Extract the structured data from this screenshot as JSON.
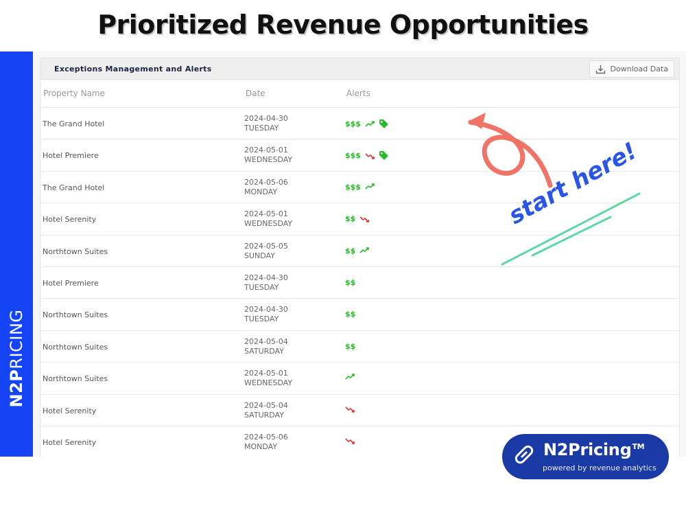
{
  "title": "Prioritized Revenue Opportunities",
  "sidebar": {
    "brand_bold": "N2P",
    "brand_rest": "RICING"
  },
  "panel": {
    "header_title": "Exceptions Management and Alerts",
    "download_label": "Download Data",
    "columns": [
      "Property Name",
      "Date",
      "Alerts"
    ]
  },
  "rows": [
    {
      "property": "The Grand Hotel",
      "date": "2024-04-30",
      "day": "TUESDAY",
      "money": "$$$",
      "trend": "up",
      "tag": true
    },
    {
      "property": "Hotel Premiere",
      "date": "2024-05-01",
      "day": "WEDNESDAY",
      "money": "$$$",
      "trend": "down",
      "tag": true
    },
    {
      "property": "The Grand Hotel",
      "date": "2024-05-06",
      "day": "MONDAY",
      "money": "$$$",
      "trend": "up",
      "tag": false
    },
    {
      "property": "Hotel Serenity",
      "date": "2024-05-01",
      "day": "WEDNESDAY",
      "money": "$$",
      "trend": "down",
      "tag": false
    },
    {
      "property": "Northtown Suites",
      "date": "2024-05-05",
      "day": "SUNDAY",
      "money": "$$",
      "trend": "up",
      "tag": false
    },
    {
      "property": "Hotel Premiere",
      "date": "2024-04-30",
      "day": "TUESDAY",
      "money": "$$",
      "trend": "",
      "tag": false
    },
    {
      "property": "Northtown Suites",
      "date": "2024-04-30",
      "day": "TUESDAY",
      "money": "$$",
      "trend": "",
      "tag": false
    },
    {
      "property": "Northtown Suites",
      "date": "2024-05-04",
      "day": "SATURDAY",
      "money": "$$",
      "trend": "",
      "tag": false
    },
    {
      "property": "Northtown Suites",
      "date": "2024-05-01",
      "day": "WEDNESDAY",
      "money": "",
      "trend": "up",
      "tag": false
    },
    {
      "property": "Hotel Serenity",
      "date": "2024-05-04",
      "day": "SATURDAY",
      "money": "",
      "trend": "down",
      "tag": false
    },
    {
      "property": "Hotel Serenity",
      "date": "2024-05-06",
      "day": "MONDAY",
      "money": "",
      "trend": "down",
      "tag": false
    }
  ],
  "annotation": {
    "text": "start here!"
  },
  "badge": {
    "name": "N2Pricing",
    "tm": "TM",
    "subtitle": "powered by revenue analytics"
  },
  "colors": {
    "brand_blue": "#1544f5",
    "badge_blue": "#1a3aa6",
    "money_green": "#2eb82e",
    "trend_up": "#2eb82e",
    "trend_down": "#e03030",
    "arrow": "#f07368",
    "underline": "#5fd6a4"
  }
}
